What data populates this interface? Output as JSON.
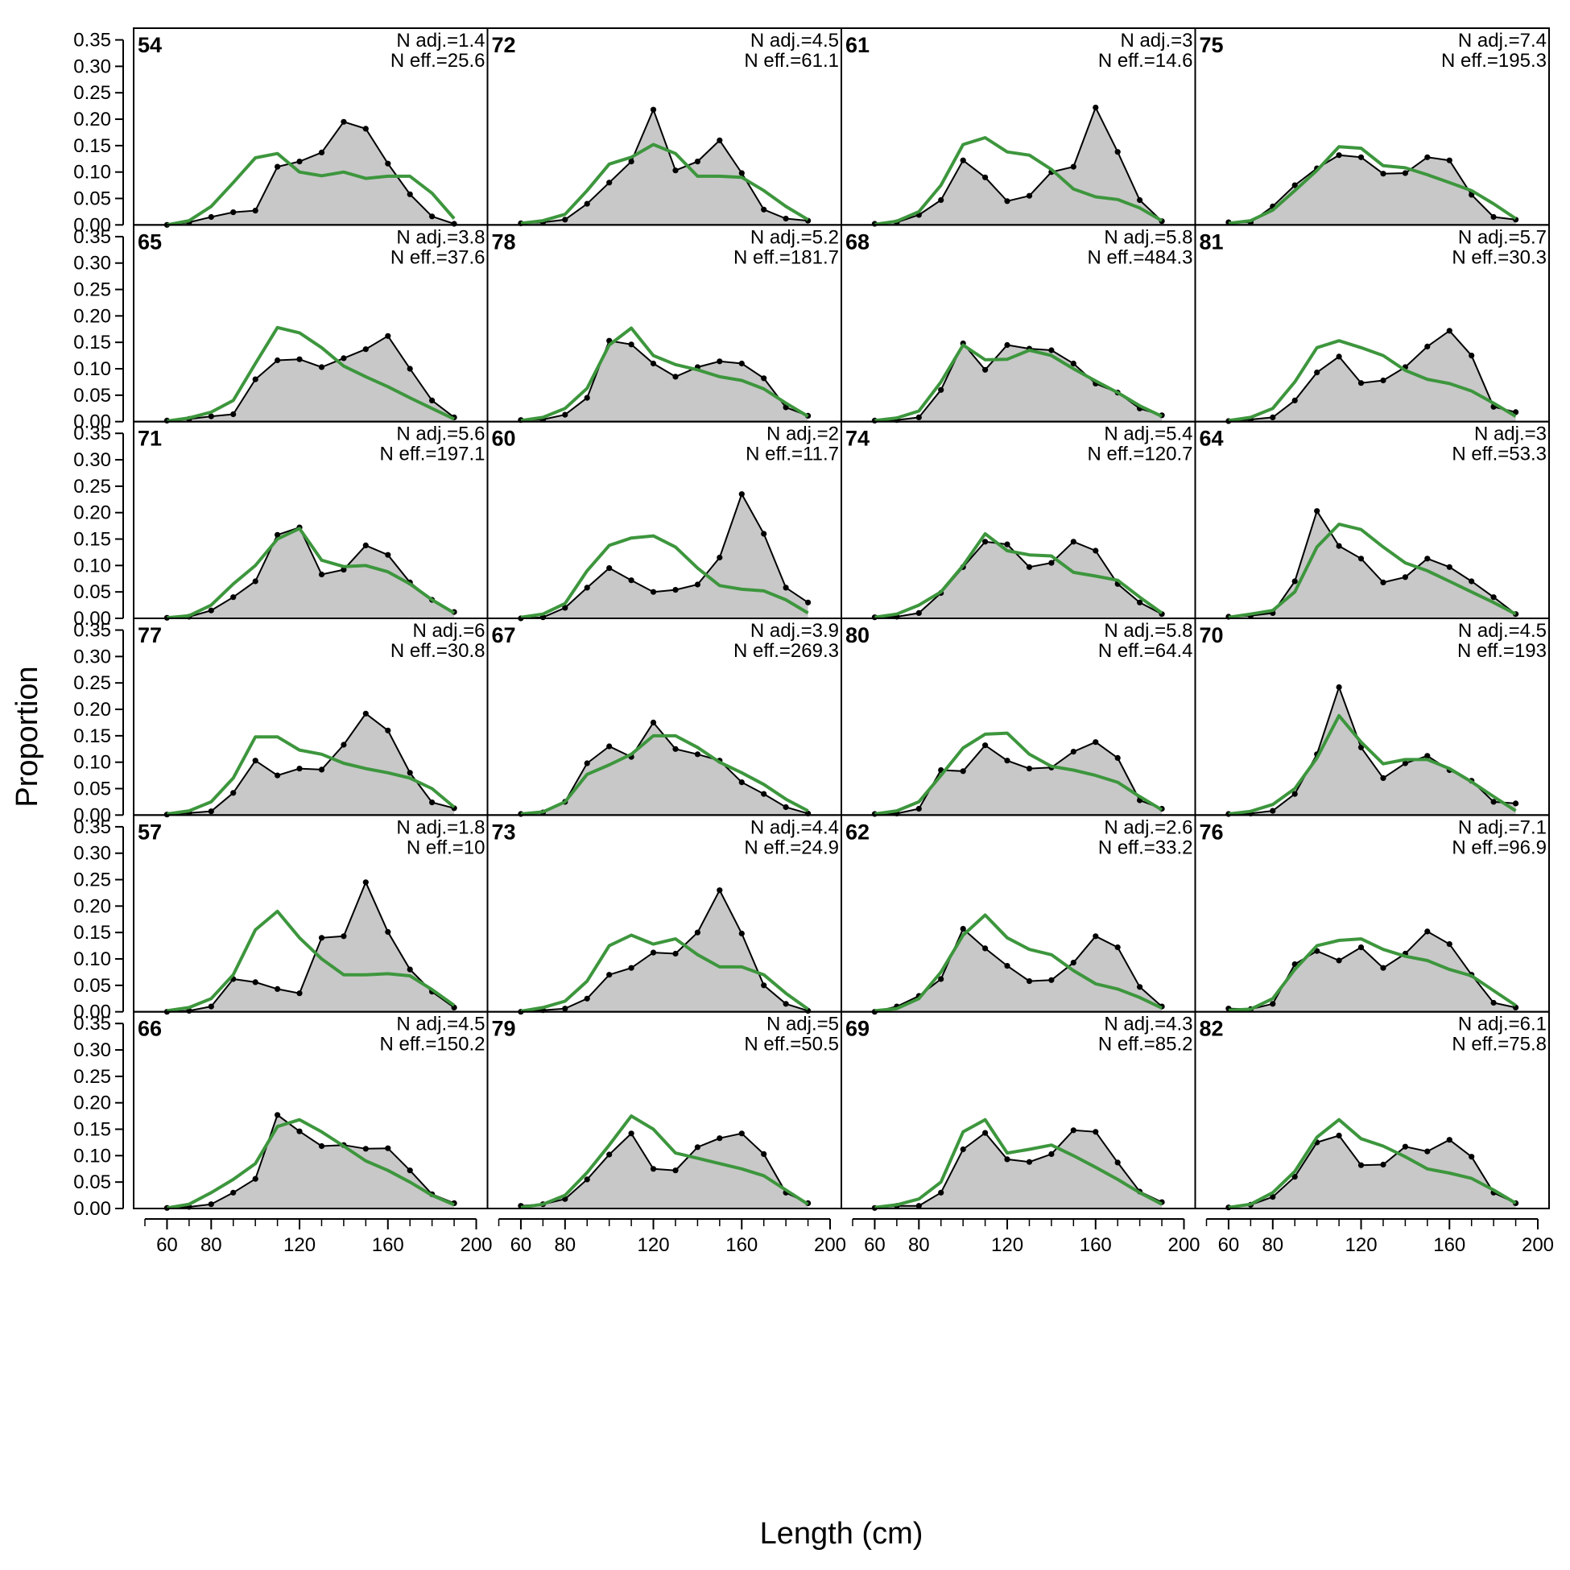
{
  "chart_data": {
    "type": "line",
    "layout": "multi-panel grid, 6 rows x 4 columns",
    "xlabel": "Length (cm)",
    "ylabel": "Proportion",
    "xlim": [
      50,
      200
    ],
    "ylim": [
      0,
      0.36
    ],
    "xticks": [
      60,
      80,
      120,
      160,
      200
    ],
    "yticks": [
      "0.00",
      "0.05",
      "0.10",
      "0.15",
      "0.20",
      "0.25",
      "0.30",
      "0.35"
    ],
    "grid": false,
    "colors": {
      "observed_fill": "#c8c8c8",
      "observed_line": "#000000",
      "expected_line": "#3d963d",
      "zero_line": "#aaaaaa"
    },
    "x": [
      60,
      70,
      80,
      90,
      100,
      110,
      120,
      130,
      140,
      150,
      160,
      170,
      180,
      190
    ],
    "panels": [
      {
        "label": "54",
        "nadj": "N adj.=1.4",
        "neff": "N eff.=25.6",
        "obs": [
          0.0,
          0.005,
          0.015,
          0.024,
          0.027,
          0.11,
          0.12,
          0.137,
          0.195,
          0.182,
          0.116,
          0.058,
          0.016,
          0.002
        ],
        "exp": [
          0.0,
          0.008,
          0.035,
          0.08,
          0.127,
          0.135,
          0.1,
          0.093,
          0.1,
          0.088,
          0.092,
          0.092,
          0.06,
          0.012
        ]
      },
      {
        "label": "65",
        "nadj": "N adj.=3.8",
        "neff": "N eff.=37.6",
        "obs": [
          0.002,
          0.005,
          0.01,
          0.014,
          0.08,
          0.116,
          0.118,
          0.103,
          0.12,
          0.137,
          0.162,
          0.1,
          0.04,
          0.008
        ],
        "exp": [
          0.001,
          0.007,
          0.018,
          0.04,
          0.11,
          0.178,
          0.168,
          0.14,
          0.105,
          0.085,
          0.066,
          0.045,
          0.025,
          0.005
        ]
      },
      {
        "label": "71",
        "nadj": "N adj.=5.6",
        "neff": "N eff.=197.1",
        "obs": [
          0.001,
          0.003,
          0.015,
          0.04,
          0.07,
          0.158,
          0.172,
          0.083,
          0.092,
          0.138,
          0.12,
          0.068,
          0.035,
          0.012
        ],
        "exp": [
          0.001,
          0.005,
          0.025,
          0.065,
          0.1,
          0.15,
          0.17,
          0.11,
          0.098,
          0.1,
          0.088,
          0.065,
          0.035,
          0.01
        ]
      },
      {
        "label": "77",
        "nadj": "N adj.=6",
        "neff": "N eff.=30.8",
        "obs": [
          0.001,
          0.004,
          0.007,
          0.042,
          0.103,
          0.075,
          0.088,
          0.086,
          0.133,
          0.192,
          0.16,
          0.08,
          0.024,
          0.013
        ],
        "exp": [
          0.002,
          0.008,
          0.025,
          0.07,
          0.148,
          0.148,
          0.123,
          0.115,
          0.098,
          0.088,
          0.08,
          0.07,
          0.05,
          0.015
        ]
      },
      {
        "label": "57",
        "nadj": "N adj.=1.8",
        "neff": "N eff.=10",
        "obs": [
          0.0,
          0.002,
          0.01,
          0.062,
          0.056,
          0.043,
          0.035,
          0.14,
          0.143,
          0.245,
          0.151,
          0.08,
          0.038,
          0.008
        ],
        "exp": [
          0.002,
          0.008,
          0.025,
          0.07,
          0.155,
          0.19,
          0.14,
          0.1,
          0.07,
          0.07,
          0.072,
          0.068,
          0.042,
          0.012
        ]
      },
      {
        "label": "66",
        "nadj": "N adj.=4.5",
        "neff": "N eff.=150.2",
        "obs": [
          0.001,
          0.003,
          0.008,
          0.03,
          0.056,
          0.177,
          0.146,
          0.118,
          0.12,
          0.113,
          0.114,
          0.072,
          0.027,
          0.01
        ],
        "exp": [
          0.001,
          0.008,
          0.03,
          0.055,
          0.085,
          0.155,
          0.168,
          0.145,
          0.118,
          0.09,
          0.072,
          0.05,
          0.025,
          0.007
        ]
      },
      {
        "label": "72",
        "nadj": "N adj.=4.5",
        "neff": "N eff.=61.1",
        "obs": [
          0.003,
          0.005,
          0.01,
          0.04,
          0.08,
          0.12,
          0.218,
          0.103,
          0.12,
          0.16,
          0.098,
          0.029,
          0.012,
          0.008
        ],
        "exp": [
          0.003,
          0.008,
          0.02,
          0.065,
          0.115,
          0.128,
          0.152,
          0.135,
          0.092,
          0.092,
          0.09,
          0.065,
          0.035,
          0.01
        ]
      },
      {
        "label": "78",
        "nadj": "N adj.=5.2",
        "neff": "N eff.=181.7",
        "obs": [
          0.003,
          0.004,
          0.013,
          0.045,
          0.153,
          0.146,
          0.11,
          0.085,
          0.103,
          0.114,
          0.11,
          0.082,
          0.027,
          0.011
        ],
        "exp": [
          0.002,
          0.008,
          0.025,
          0.063,
          0.145,
          0.177,
          0.125,
          0.108,
          0.098,
          0.085,
          0.078,
          0.062,
          0.035,
          0.01
        ]
      },
      {
        "label": "60",
        "nadj": "N adj.=2",
        "neff": "N eff.=11.7",
        "obs": [
          0.0,
          0.002,
          0.02,
          0.058,
          0.095,
          0.072,
          0.05,
          0.054,
          0.064,
          0.115,
          0.235,
          0.16,
          0.058,
          0.03
        ],
        "exp": [
          0.002,
          0.008,
          0.028,
          0.09,
          0.138,
          0.152,
          0.156,
          0.135,
          0.095,
          0.062,
          0.055,
          0.052,
          0.035,
          0.01
        ]
      },
      {
        "label": "67",
        "nadj": "N adj.=3.9",
        "neff": "N eff.=269.3",
        "obs": [
          0.002,
          0.005,
          0.025,
          0.098,
          0.13,
          0.11,
          0.175,
          0.125,
          0.115,
          0.103,
          0.062,
          0.04,
          0.015,
          0.003
        ],
        "exp": [
          0.002,
          0.006,
          0.025,
          0.077,
          0.095,
          0.115,
          0.15,
          0.15,
          0.128,
          0.1,
          0.08,
          0.058,
          0.03,
          0.008
        ]
      },
      {
        "label": "73",
        "nadj": "N adj.=4.4",
        "neff": "N eff.=24.9",
        "obs": [
          0.0,
          0.003,
          0.006,
          0.025,
          0.07,
          0.083,
          0.112,
          0.11,
          0.15,
          0.23,
          0.148,
          0.05,
          0.015,
          0.002
        ],
        "exp": [
          0.001,
          0.008,
          0.02,
          0.058,
          0.125,
          0.145,
          0.128,
          0.138,
          0.108,
          0.085,
          0.085,
          0.07,
          0.035,
          0.005
        ]
      },
      {
        "label": "79",
        "nadj": "N adj.=5",
        "neff": "N eff.=50.5",
        "obs": [
          0.005,
          0.008,
          0.018,
          0.055,
          0.102,
          0.142,
          0.075,
          0.072,
          0.116,
          0.133,
          0.142,
          0.103,
          0.03,
          0.01
        ],
        "exp": [
          0.002,
          0.008,
          0.025,
          0.068,
          0.12,
          0.175,
          0.15,
          0.105,
          0.095,
          0.085,
          0.075,
          0.062,
          0.035,
          0.008
        ]
      },
      {
        "label": "61",
        "nadj": "N adj.=3",
        "neff": "N eff.=14.6",
        "obs": [
          0.002,
          0.005,
          0.019,
          0.047,
          0.122,
          0.09,
          0.045,
          0.055,
          0.1,
          0.11,
          0.222,
          0.138,
          0.047,
          0.007
        ],
        "exp": [
          0.001,
          0.007,
          0.025,
          0.075,
          0.152,
          0.165,
          0.138,
          0.132,
          0.105,
          0.068,
          0.053,
          0.048,
          0.032,
          0.008
        ]
      },
      {
        "label": "68",
        "nadj": "N adj.=5.8",
        "neff": "N eff.=484.3",
        "obs": [
          0.002,
          0.003,
          0.008,
          0.06,
          0.148,
          0.098,
          0.145,
          0.138,
          0.135,
          0.11,
          0.072,
          0.055,
          0.025,
          0.012
        ],
        "exp": [
          0.002,
          0.007,
          0.02,
          0.075,
          0.145,
          0.117,
          0.118,
          0.135,
          0.125,
          0.1,
          0.077,
          0.055,
          0.03,
          0.01
        ]
      },
      {
        "label": "74",
        "nadj": "N adj.=5.4",
        "neff": "N eff.=120.7",
        "obs": [
          0.002,
          0.003,
          0.01,
          0.048,
          0.097,
          0.145,
          0.14,
          0.097,
          0.105,
          0.145,
          0.128,
          0.065,
          0.03,
          0.008
        ],
        "exp": [
          0.002,
          0.008,
          0.025,
          0.05,
          0.1,
          0.16,
          0.128,
          0.12,
          0.118,
          0.087,
          0.08,
          0.072,
          0.04,
          0.01
        ]
      },
      {
        "label": "80",
        "nadj": "N adj.=5.8",
        "neff": "N eff.=64.4",
        "obs": [
          0.002,
          0.003,
          0.012,
          0.085,
          0.083,
          0.132,
          0.103,
          0.088,
          0.09,
          0.12,
          0.138,
          0.108,
          0.028,
          0.012
        ],
        "exp": [
          0.002,
          0.008,
          0.025,
          0.075,
          0.127,
          0.153,
          0.155,
          0.115,
          0.092,
          0.085,
          0.075,
          0.062,
          0.035,
          0.01
        ]
      },
      {
        "label": "62",
        "nadj": "N adj.=2.6",
        "neff": "N eff.=33.2",
        "obs": [
          0.0,
          0.01,
          0.03,
          0.062,
          0.157,
          0.12,
          0.087,
          0.058,
          0.06,
          0.093,
          0.143,
          0.122,
          0.047,
          0.01
        ],
        "exp": [
          0.002,
          0.006,
          0.025,
          0.075,
          0.145,
          0.183,
          0.14,
          0.118,
          0.108,
          0.078,
          0.053,
          0.043,
          0.027,
          0.007
        ]
      },
      {
        "label": "69",
        "nadj": "N adj.=4.3",
        "neff": "N eff.=85.2",
        "obs": [
          0.001,
          0.005,
          0.005,
          0.03,
          0.112,
          0.143,
          0.093,
          0.088,
          0.103,
          0.148,
          0.145,
          0.087,
          0.032,
          0.012
        ],
        "exp": [
          0.002,
          0.007,
          0.018,
          0.05,
          0.145,
          0.168,
          0.105,
          0.112,
          0.12,
          0.1,
          0.078,
          0.055,
          0.03,
          0.008
        ]
      },
      {
        "label": "75",
        "nadj": "N adj.=7.4",
        "neff": "N eff.=195.3",
        "obs": [
          0.005,
          0.005,
          0.035,
          0.075,
          0.107,
          0.132,
          0.128,
          0.097,
          0.098,
          0.128,
          0.122,
          0.057,
          0.015,
          0.01
        ],
        "exp": [
          0.003,
          0.008,
          0.028,
          0.065,
          0.103,
          0.148,
          0.145,
          0.112,
          0.108,
          0.095,
          0.08,
          0.065,
          0.04,
          0.012
        ]
      },
      {
        "label": "81",
        "nadj": "N adj.=5.7",
        "neff": "N eff.=30.3",
        "obs": [
          0.001,
          0.004,
          0.008,
          0.04,
          0.093,
          0.123,
          0.073,
          0.078,
          0.103,
          0.142,
          0.172,
          0.125,
          0.028,
          0.018
        ],
        "exp": [
          0.002,
          0.008,
          0.025,
          0.075,
          0.14,
          0.153,
          0.14,
          0.125,
          0.097,
          0.08,
          0.072,
          0.058,
          0.035,
          0.01
        ]
      },
      {
        "label": "64",
        "nadj": "N adj.=3",
        "neff": "N eff.=53.3",
        "obs": [
          0.003,
          0.005,
          0.01,
          0.07,
          0.203,
          0.137,
          0.113,
          0.068,
          0.078,
          0.113,
          0.097,
          0.07,
          0.04,
          0.008
        ],
        "exp": [
          0.002,
          0.008,
          0.015,
          0.05,
          0.135,
          0.178,
          0.168,
          0.135,
          0.105,
          0.09,
          0.07,
          0.05,
          0.03,
          0.008
        ]
      },
      {
        "label": "70",
        "nadj": "N adj.=4.5",
        "neff": "N eff.=193",
        "obs": [
          0.002,
          0.003,
          0.008,
          0.04,
          0.115,
          0.242,
          0.128,
          0.07,
          0.098,
          0.112,
          0.085,
          0.065,
          0.025,
          0.022
        ],
        "exp": [
          0.002,
          0.007,
          0.02,
          0.05,
          0.108,
          0.188,
          0.138,
          0.097,
          0.105,
          0.105,
          0.088,
          0.063,
          0.035,
          0.008
        ]
      },
      {
        "label": "76",
        "nadj": "N adj.=7.1",
        "neff": "N eff.=96.9",
        "obs": [
          0.006,
          0.005,
          0.015,
          0.09,
          0.115,
          0.097,
          0.122,
          0.083,
          0.11,
          0.152,
          0.128,
          0.07,
          0.017,
          0.008
        ],
        "exp": [
          0.003,
          0.005,
          0.025,
          0.08,
          0.125,
          0.135,
          0.138,
          0.118,
          0.105,
          0.097,
          0.08,
          0.068,
          0.04,
          0.012
        ]
      },
      {
        "label": "82",
        "nadj": "N adj.=6.1",
        "neff": "N eff.=75.8",
        "obs": [
          0.002,
          0.007,
          0.022,
          0.06,
          0.125,
          0.138,
          0.082,
          0.083,
          0.117,
          0.108,
          0.13,
          0.098,
          0.03,
          0.01
        ],
        "exp": [
          0.002,
          0.008,
          0.03,
          0.07,
          0.135,
          0.168,
          0.132,
          0.118,
          0.098,
          0.075,
          0.067,
          0.057,
          0.035,
          0.01
        ]
      }
    ]
  }
}
